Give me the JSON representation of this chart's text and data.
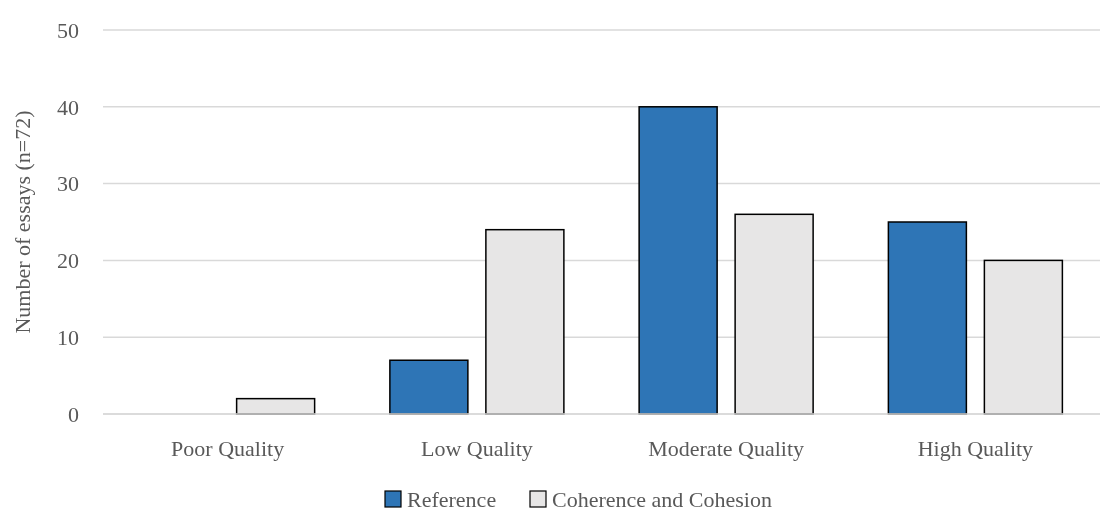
{
  "chart_data": {
    "type": "bar",
    "ylabel": "Number of essays (n=72)",
    "categories": [
      "Poor Quality",
      "Low Quality",
      "Moderate Quality",
      "High Quality"
    ],
    "series": [
      {
        "name": "Reference",
        "color": "#2e75b6",
        "values": [
          0,
          7,
          40,
          25
        ]
      },
      {
        "name": "Coherence and Cohesion",
        "color": "#e7e6e6",
        "values": [
          2,
          24,
          26,
          20
        ]
      }
    ],
    "ylim": [
      0,
      50
    ],
    "yticks": [
      0,
      10,
      20,
      30,
      40,
      50
    ],
    "grid": "y",
    "legend": "bottom"
  }
}
